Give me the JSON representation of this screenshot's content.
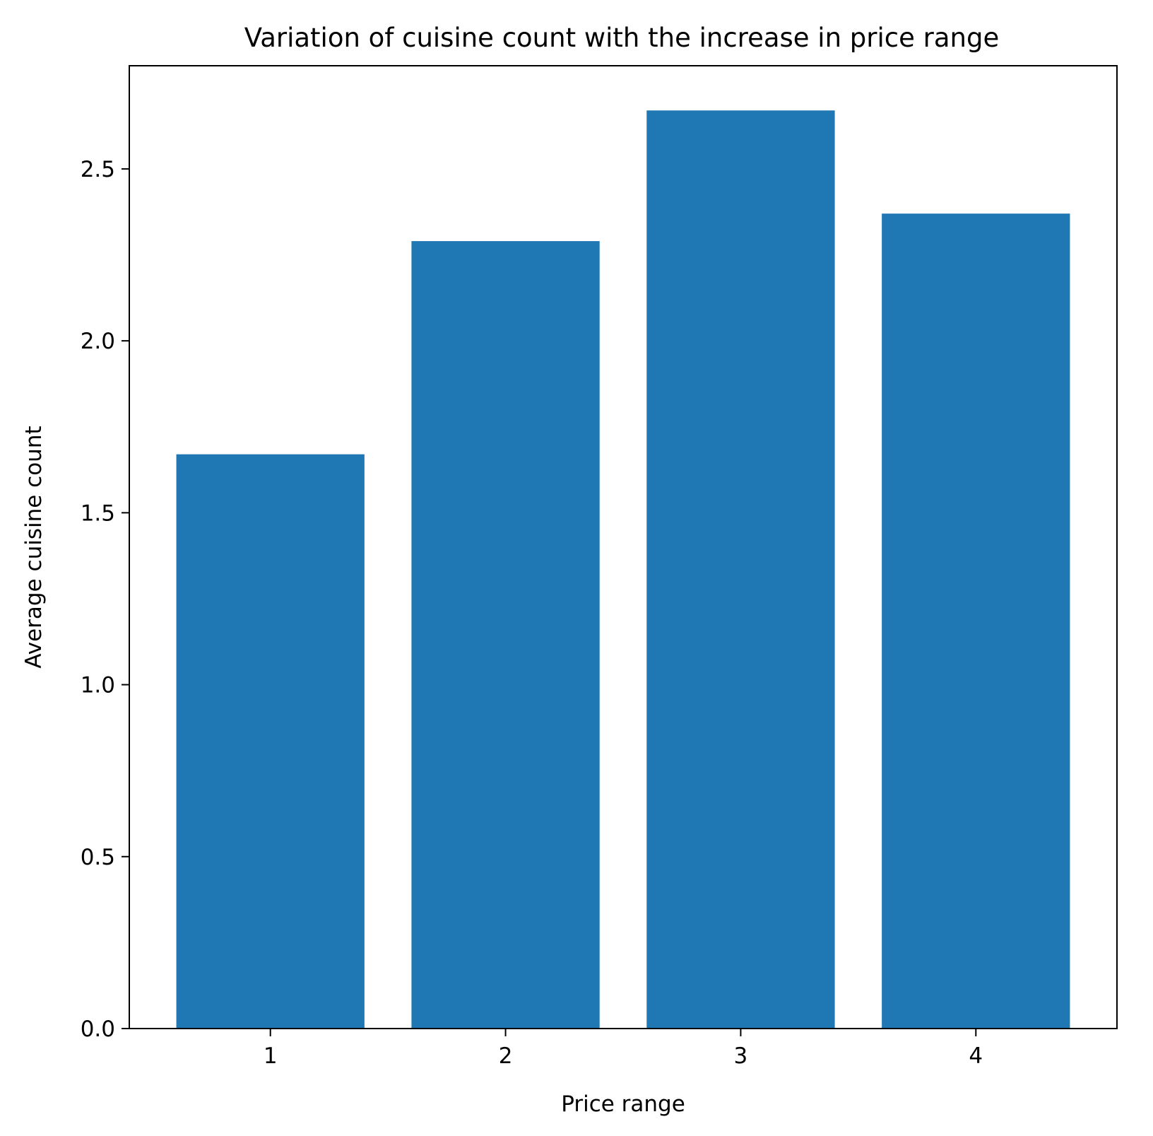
{
  "chart_data": {
    "type": "bar",
    "title": "Variation of cuisine count with the increase in price range",
    "xlabel": "Price range",
    "ylabel": "Average cuisine count",
    "categories": [
      "1",
      "2",
      "3",
      "4"
    ],
    "values": [
      1.67,
      2.29,
      2.67,
      2.37
    ],
    "ylim": [
      0,
      2.8
    ],
    "yticks": [
      "0.0",
      "0.5",
      "1.0",
      "1.5",
      "2.0",
      "2.5"
    ],
    "bar_color": "#1f77b4",
    "grid": false,
    "legend": "none"
  }
}
